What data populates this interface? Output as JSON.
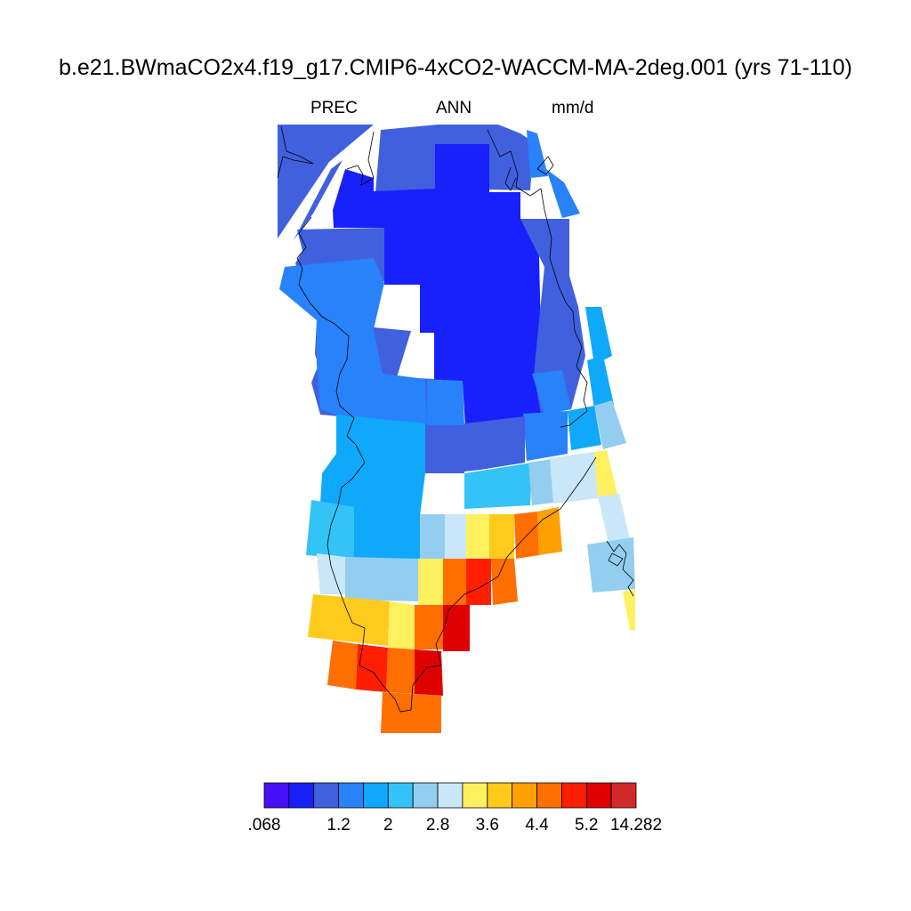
{
  "title": "b.e21.BWmaCO2x4.f19_g17.CMIP6-4xCO2-WACCM-MA-2deg.001 (yrs 71-110)",
  "left_label": "PREC",
  "center_label": "ANN",
  "right_label": "mm/d",
  "colorbar": {
    "colors": [
      "#4410f5",
      "#1820fb",
      "#4060de",
      "#2882fa",
      "#0fa8fb",
      "#34c3f7",
      "#93cdf0",
      "#c9e7f8",
      "#fff060",
      "#ffca1c",
      "#ffa000",
      "#ff6e00",
      "#ff1e00",
      "#df0000",
      "#d22a2a"
    ],
    "labels": [
      {
        "text": ".068",
        "boundary": 0
      },
      {
        "text": "1.2",
        "boundary": 3
      },
      {
        "text": "2",
        "boundary": 5
      },
      {
        "text": "2.8",
        "boundary": 7
      },
      {
        "text": "3.6",
        "boundary": 9
      },
      {
        "text": "4.4",
        "boundary": 11
      },
      {
        "text": "5.2",
        "boundary": 13
      },
      {
        "text": "14.282",
        "boundary": 15
      }
    ]
  }
}
